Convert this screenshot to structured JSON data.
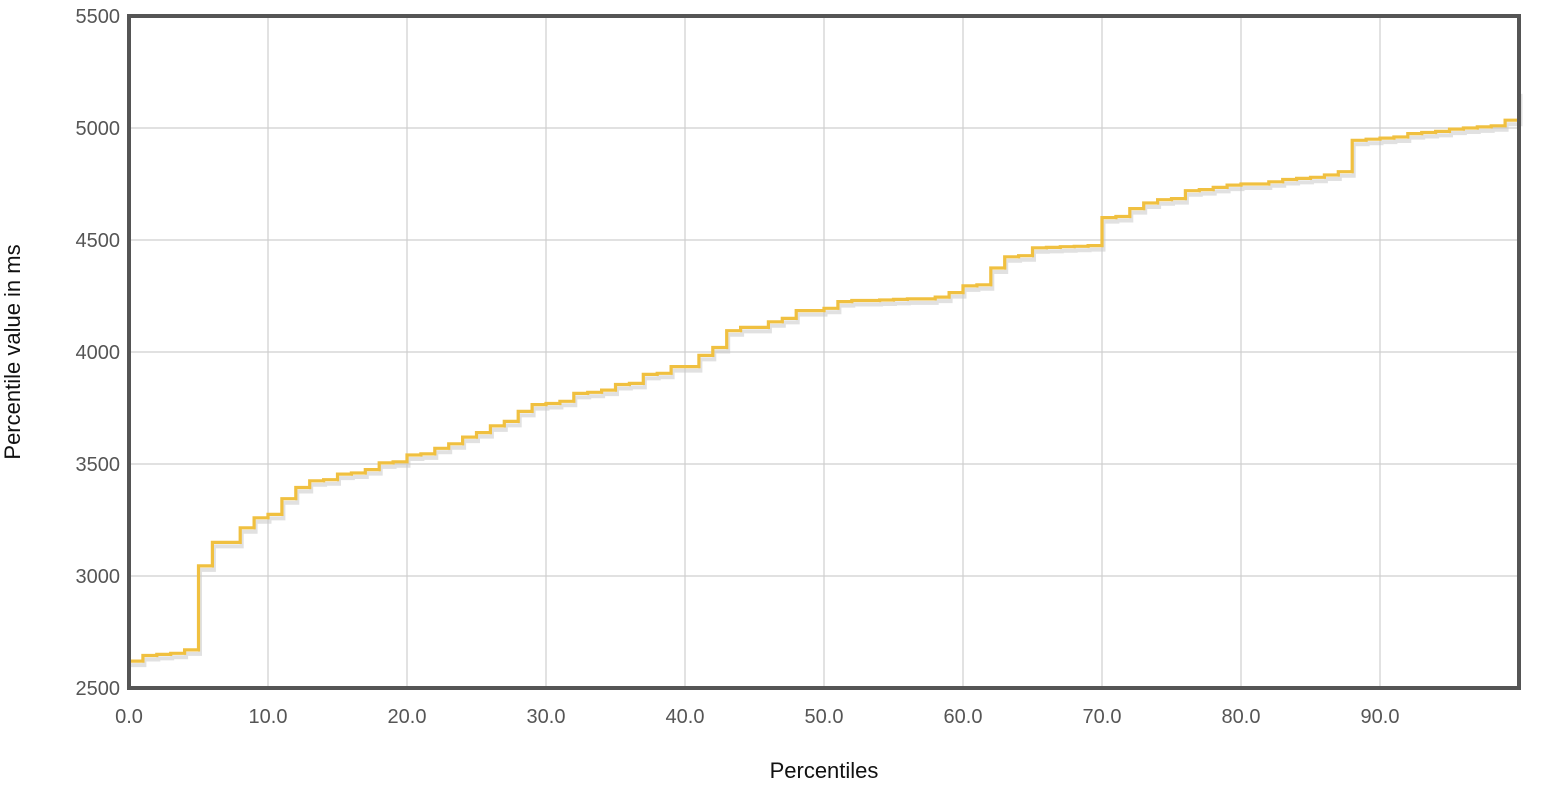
{
  "chart_data": {
    "type": "line",
    "step": true,
    "title": "",
    "xlabel": "Percentiles",
    "ylabel": "Percentile value in ms",
    "xlim": [
      0,
      100
    ],
    "ylim": [
      2500,
      5500
    ],
    "grid": true,
    "x_ticks": [
      0,
      10,
      20,
      30,
      40,
      50,
      60,
      70,
      80,
      90
    ],
    "x_tick_labels": [
      "0.0",
      "10.0",
      "20.0",
      "30.0",
      "40.0",
      "50.0",
      "60.0",
      "70.0",
      "80.0",
      "90.0"
    ],
    "y_ticks": [
      2500,
      3000,
      3500,
      4000,
      4500,
      5000,
      5500
    ],
    "y_tick_labels": [
      "2500",
      "3000",
      "3500",
      "4000",
      "4500",
      "5000",
      "5500"
    ],
    "series": [
      {
        "color": "#f0c040",
        "x": [
          0,
          1,
          2,
          3,
          4,
          5,
          6,
          7,
          8,
          9,
          10,
          11,
          12,
          13,
          14,
          15,
          16,
          17,
          18,
          19,
          20,
          21,
          22,
          23,
          24,
          25,
          26,
          27,
          28,
          29,
          30,
          31,
          32,
          33,
          34,
          35,
          36,
          37,
          38,
          39,
          40,
          41,
          42,
          43,
          44,
          45,
          46,
          47,
          48,
          49,
          50,
          51,
          52,
          53,
          54,
          55,
          56,
          57,
          58,
          59,
          60,
          61,
          62,
          63,
          64,
          65,
          66,
          67,
          68,
          69,
          70,
          71,
          72,
          73,
          74,
          75,
          76,
          77,
          78,
          79,
          80,
          81,
          82,
          83,
          84,
          85,
          86,
          87,
          88,
          89,
          90,
          91,
          92,
          93,
          94,
          95,
          96,
          97,
          98,
          99,
          100
        ],
        "values": [
          2620,
          2645,
          2650,
          2655,
          2670,
          3045,
          3150,
          3150,
          3215,
          3260,
          3275,
          3345,
          3395,
          3425,
          3430,
          3455,
          3460,
          3475,
          3505,
          3510,
          3540,
          3545,
          3570,
          3590,
          3620,
          3640,
          3670,
          3690,
          3735,
          3765,
          3770,
          3780,
          3815,
          3820,
          3830,
          3855,
          3860,
          3900,
          3905,
          3935,
          3935,
          3985,
          4020,
          4095,
          4110,
          4110,
          4135,
          4150,
          4185,
          4185,
          4195,
          4225,
          4230,
          4230,
          4232,
          4235,
          4237,
          4237,
          4245,
          4265,
          4295,
          4300,
          4375,
          4425,
          4430,
          4465,
          4467,
          4470,
          4472,
          4475,
          4600,
          4605,
          4640,
          4665,
          4680,
          4685,
          4720,
          4725,
          4735,
          4745,
          4750,
          4750,
          4760,
          4770,
          4775,
          4780,
          4790,
          4805,
          4945,
          4950,
          4955,
          4960,
          4975,
          4980,
          4985,
          4995,
          5000,
          5005,
          5010,
          5035,
          5170
        ]
      }
    ]
  }
}
